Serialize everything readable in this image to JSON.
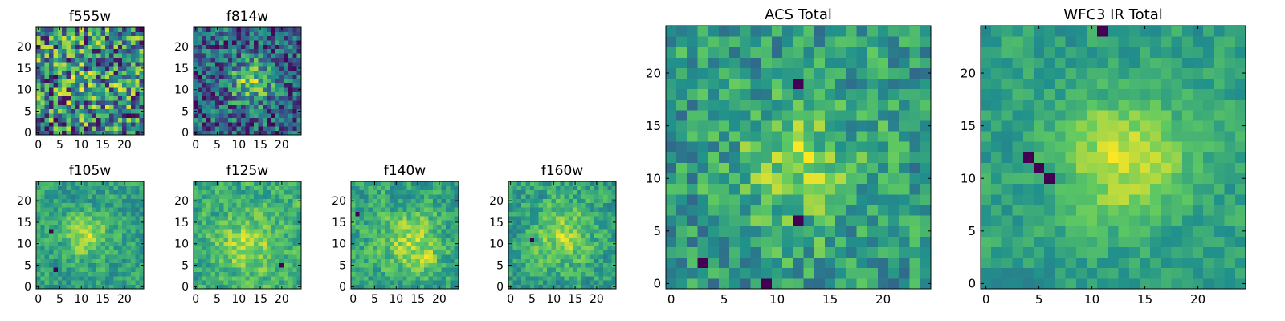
{
  "figure": {
    "description_free": true
  },
  "colormap": {
    "name": "viridis",
    "stops": [
      "#440154",
      "#3b528b",
      "#21918c",
      "#5ec962",
      "#fde725"
    ]
  },
  "chart_data": [
    {
      "id": "f555w",
      "type": "heatmap",
      "title": "f555w",
      "rows": 25,
      "cols": 25,
      "xlim": [
        -0.5,
        24.5
      ],
      "ylim": [
        -0.5,
        24.5
      ],
      "xticks": [
        0,
        5,
        10,
        15,
        20
      ],
      "yticks": [
        0,
        5,
        10,
        15,
        20
      ],
      "pattern": {
        "seed": 11,
        "blob_x": 12,
        "blob_y": 12,
        "blob_sigma": 6,
        "blob_amp": 0.08,
        "noise": 0.75,
        "dark_spots": [],
        "smooth": 0
      }
    },
    {
      "id": "f814w",
      "type": "heatmap",
      "title": "f814w",
      "rows": 25,
      "cols": 25,
      "xlim": [
        -0.5,
        24.5
      ],
      "ylim": [
        -0.5,
        24.5
      ],
      "xticks": [
        0,
        5,
        10,
        15,
        20
      ],
      "yticks": [
        0,
        5,
        10,
        15,
        20
      ],
      "pattern": {
        "seed": 23,
        "blob_x": 13,
        "blob_y": 12,
        "blob_sigma": 3.5,
        "blob_amp": 0.45,
        "noise": 0.6,
        "dark_spots": [],
        "smooth": 0
      }
    },
    {
      "id": "f105w",
      "type": "heatmap",
      "title": "f105w",
      "rows": 25,
      "cols": 25,
      "xlim": [
        -0.5,
        24.5
      ],
      "ylim": [
        -0.5,
        24.5
      ],
      "xticks": [
        0,
        5,
        10,
        15,
        20
      ],
      "yticks": [
        0,
        5,
        10,
        15,
        20
      ],
      "pattern": {
        "seed": 37,
        "blob_x": 11,
        "blob_y": 12,
        "blob_sigma": 3.5,
        "blob_amp": 0.4,
        "noise": 0.55,
        "dark_spots": [
          [
            3,
            13
          ],
          [
            4,
            4
          ]
        ],
        "smooth": 1
      }
    },
    {
      "id": "f125w",
      "type": "heatmap",
      "title": "f125w",
      "rows": 25,
      "cols": 25,
      "xlim": [
        -0.5,
        24.5
      ],
      "ylim": [
        -0.5,
        24.5
      ],
      "xticks": [
        0,
        5,
        10,
        15,
        20
      ],
      "yticks": [
        0,
        5,
        10,
        15,
        20
      ],
      "pattern": {
        "seed": 41,
        "blob_x": 12,
        "blob_y": 10,
        "blob_sigma": 5,
        "blob_amp": 0.3,
        "noise": 0.55,
        "dark_spots": [
          [
            20,
            5
          ]
        ],
        "smooth": 1
      }
    },
    {
      "id": "f140w",
      "type": "heatmap",
      "title": "f140w",
      "rows": 25,
      "cols": 25,
      "xlim": [
        -0.5,
        24.5
      ],
      "ylim": [
        -0.5,
        24.5
      ],
      "xticks": [
        0,
        5,
        10,
        15,
        20
      ],
      "yticks": [
        0,
        5,
        10,
        15,
        20
      ],
      "pattern": {
        "seed": 53,
        "blob_x": 14,
        "blob_y": 10,
        "blob_sigma": 5,
        "blob_amp": 0.35,
        "noise": 0.6,
        "dark_spots": [
          [
            1,
            17
          ]
        ],
        "smooth": 1
      }
    },
    {
      "id": "f160w",
      "type": "heatmap",
      "title": "f160w",
      "rows": 25,
      "cols": 25,
      "xlim": [
        -0.5,
        24.5
      ],
      "ylim": [
        -0.5,
        24.5
      ],
      "xticks": [
        0,
        5,
        10,
        15,
        20
      ],
      "yticks": [
        0,
        5,
        10,
        15,
        20
      ],
      "pattern": {
        "seed": 67,
        "blob_x": 12,
        "blob_y": 12,
        "blob_sigma": 5,
        "blob_amp": 0.35,
        "noise": 0.6,
        "dark_spots": [
          [
            5,
            11
          ]
        ],
        "smooth": 1
      }
    },
    {
      "id": "acs_total",
      "type": "heatmap",
      "title": "ACS Total",
      "rows": 25,
      "cols": 25,
      "xlim": [
        -0.5,
        24.5
      ],
      "ylim": [
        -0.5,
        24.5
      ],
      "xticks": [
        0,
        5,
        10,
        15,
        20
      ],
      "yticks": [
        0,
        5,
        10,
        15,
        20
      ],
      "pattern": {
        "seed": 79,
        "blob_x": 12,
        "blob_y": 11,
        "blob_sigma": 4,
        "blob_amp": 0.35,
        "noise": 0.55,
        "dark_spots": [
          [
            9,
            0
          ],
          [
            12,
            6
          ],
          [
            3,
            2
          ],
          [
            12,
            19
          ]
        ],
        "smooth": 0
      }
    },
    {
      "id": "wfc3_ir_total",
      "type": "heatmap",
      "title": "WFC3 IR Total",
      "rows": 25,
      "cols": 25,
      "xlim": [
        -0.5,
        24.5
      ],
      "ylim": [
        -0.5,
        24.5
      ],
      "xticks": [
        0,
        5,
        10,
        15,
        20
      ],
      "yticks": [
        0,
        5,
        10,
        15,
        20
      ],
      "pattern": {
        "seed": 97,
        "blob_x": 13,
        "blob_y": 12,
        "blob_sigma": 4,
        "blob_amp": 0.45,
        "noise": 0.4,
        "dark_spots": [
          [
            5,
            11
          ],
          [
            4,
            12
          ],
          [
            6,
            10
          ],
          [
            11,
            24
          ]
        ],
        "smooth": 1
      }
    }
  ]
}
